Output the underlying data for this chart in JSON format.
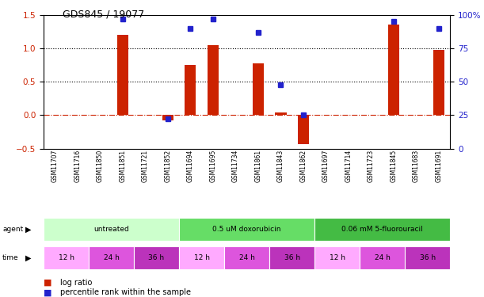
{
  "title": "GDS845 / 19077",
  "samples": [
    "GSM11707",
    "GSM11716",
    "GSM11850",
    "GSM11851",
    "GSM11721",
    "GSM11852",
    "GSM11694",
    "GSM11695",
    "GSM11734",
    "GSM11861",
    "GSM11843",
    "GSM11862",
    "GSM11697",
    "GSM11714",
    "GSM11723",
    "GSM11845",
    "GSM11683",
    "GSM11691"
  ],
  "log_ratio": [
    0,
    0,
    0,
    1.2,
    0,
    -0.08,
    0.75,
    1.05,
    0,
    0.78,
    0.04,
    -0.44,
    0,
    0,
    0,
    1.35,
    0,
    0.97
  ],
  "percentile_rank": [
    null,
    null,
    null,
    97,
    null,
    22,
    90,
    97,
    null,
    87,
    48,
    25,
    null,
    null,
    null,
    95,
    null,
    90
  ],
  "agents": [
    {
      "label": "untreated",
      "start": 0,
      "end": 6,
      "color": "#ccffcc"
    },
    {
      "label": "0.5 uM doxorubicin",
      "start": 6,
      "end": 12,
      "color": "#66dd66"
    },
    {
      "label": "0.06 mM 5-fluorouracil",
      "start": 12,
      "end": 18,
      "color": "#44bb44"
    }
  ],
  "time_blocks": [
    {
      "label": "12 h",
      "start": 0,
      "end": 2,
      "color": "#ffaaff"
    },
    {
      "label": "24 h",
      "start": 2,
      "end": 4,
      "color": "#dd55dd"
    },
    {
      "label": "36 h",
      "start": 4,
      "end": 6,
      "color": "#bb33bb"
    },
    {
      "label": "12 h",
      "start": 6,
      "end": 8,
      "color": "#ffaaff"
    },
    {
      "label": "24 h",
      "start": 8,
      "end": 10,
      "color": "#dd55dd"
    },
    {
      "label": "36 h",
      "start": 10,
      "end": 12,
      "color": "#bb33bb"
    },
    {
      "label": "12 h",
      "start": 12,
      "end": 14,
      "color": "#ffaaff"
    },
    {
      "label": "24 h",
      "start": 14,
      "end": 16,
      "color": "#dd55dd"
    },
    {
      "label": "36 h",
      "start": 16,
      "end": 18,
      "color": "#bb33bb"
    }
  ],
  "bar_color": "#cc2200",
  "dot_color": "#2222cc",
  "ylim_left": [
    -0.5,
    1.5
  ],
  "ylim_right": [
    0,
    100
  ],
  "yticks_left": [
    -0.5,
    0,
    0.5,
    1.0,
    1.5
  ],
  "yticks_right": [
    0,
    25,
    50,
    75,
    100
  ],
  "hlines": [
    0.5,
    1.0
  ],
  "zero_line": 0.0,
  "fig_width": 6.11,
  "fig_height": 3.75,
  "dpi": 100
}
